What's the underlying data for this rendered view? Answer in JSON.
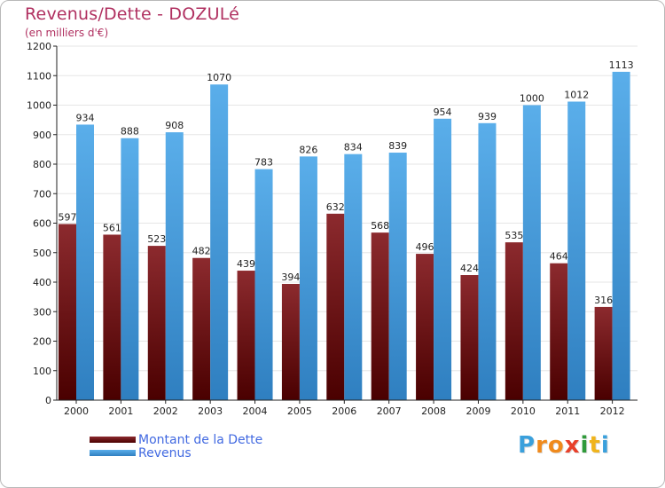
{
  "title": "Revenus/Dette - DOZULé",
  "subtitle": "(en milliers d'€)",
  "colors": {
    "debt_top": "#8c2a2e",
    "debt_bottom": "#4a0000",
    "revenue_top": "#5aaeea",
    "revenue_bottom": "#2f7fc0",
    "title": "#b03060",
    "legend_text": "#4169e1",
    "grid": "#e6e6e6"
  },
  "chart_data": {
    "type": "bar",
    "categories": [
      "2000",
      "2001",
      "2002",
      "2003",
      "2004",
      "2005",
      "2006",
      "2007",
      "2008",
      "2009",
      "2010",
      "2011",
      "2012"
    ],
    "series": [
      {
        "name": "Montant de la Dette",
        "values": [
          597,
          561,
          523,
          482,
          439,
          394,
          632,
          568,
          496,
          424,
          535,
          464,
          316
        ]
      },
      {
        "name": "Revenus",
        "values": [
          934,
          888,
          908,
          1070,
          783,
          826,
          834,
          839,
          954,
          939,
          1000,
          1012,
          1113
        ]
      }
    ],
    "ylim": [
      0,
      1200
    ],
    "yticks": [
      0,
      100,
      200,
      300,
      400,
      500,
      600,
      700,
      800,
      900,
      1000,
      1100,
      1200
    ],
    "grid": true,
    "legend_position": "bottom-left"
  },
  "legend": [
    {
      "label": "Montant de la Dette"
    },
    {
      "label": "Revenus"
    }
  ],
  "logo": {
    "letters": [
      "P",
      "r",
      "o",
      "x",
      "i",
      "t",
      "i"
    ],
    "colors": [
      "#3aa0dc",
      "#f08a1c",
      "#f08a1c",
      "#e8402a",
      "#2f9a3a",
      "#f0b41c",
      "#3aa0dc"
    ]
  }
}
